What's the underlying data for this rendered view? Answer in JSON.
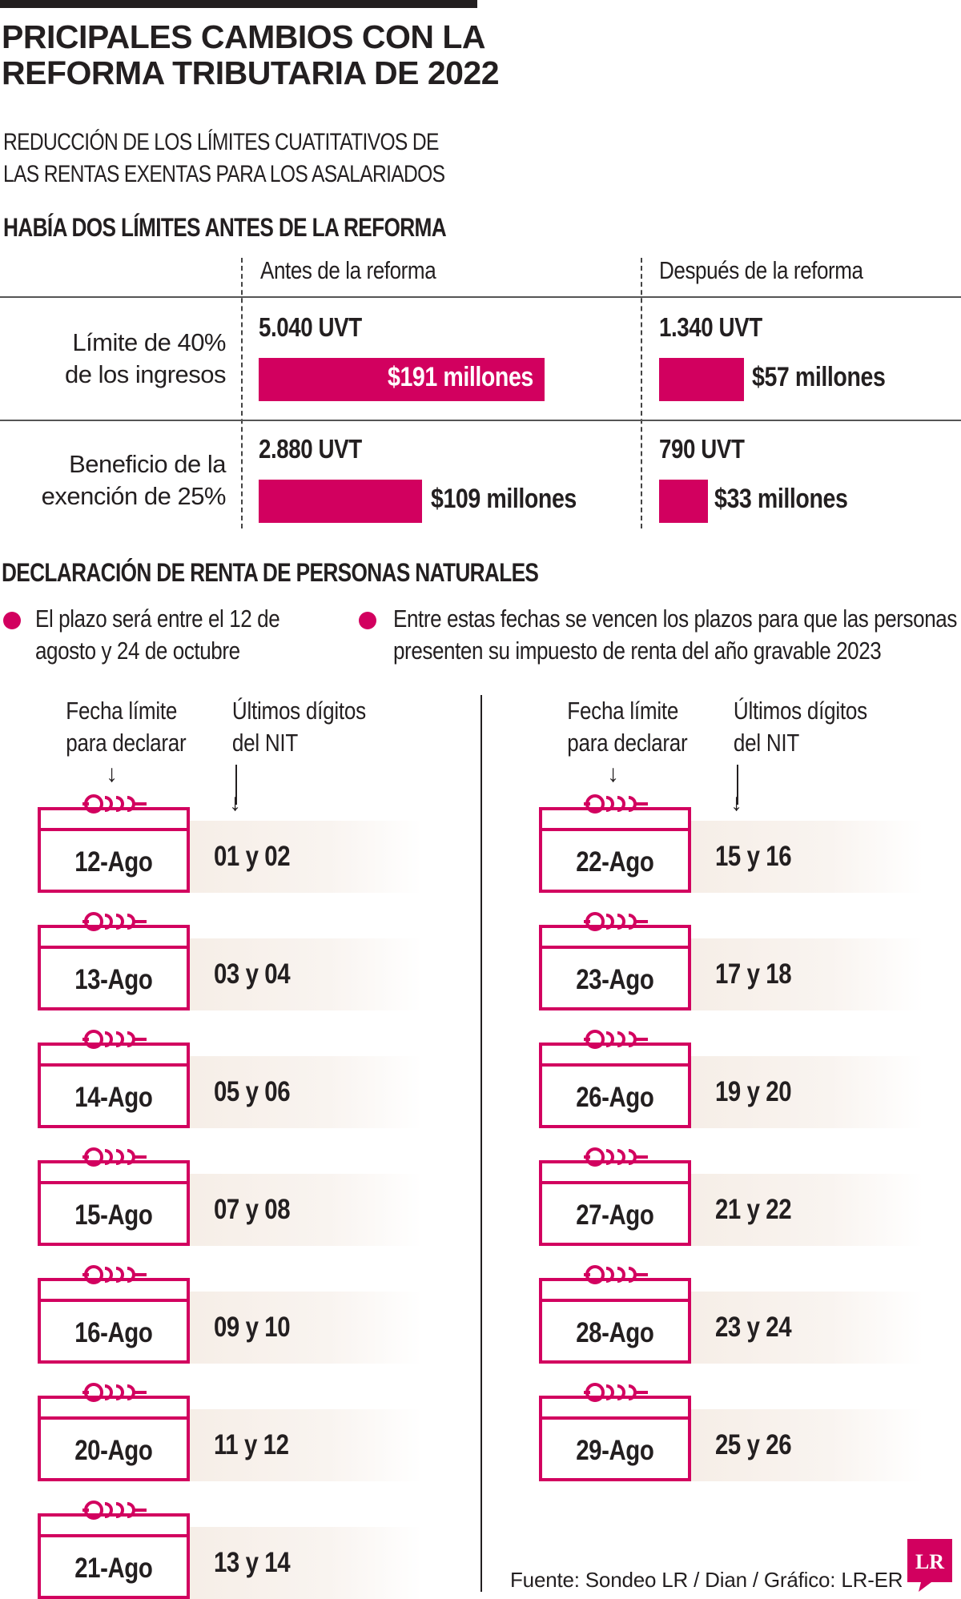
{
  "title": [
    "PRICIPALES CAMBIOS CON LA",
    "REFORMA TRIBUTARIA DE 2022"
  ],
  "subtitle": [
    "REDUCCIÓN DE LOS LÍMITES CUATITATIVOS DE",
    "LAS RENTAS EXENTAS PARA LOS ASALARIADOS"
  ],
  "section1": {
    "heading": "HABÍA DOS LÍMITES ANTES DE LA REFORMA",
    "col_before": "Antes de la reforma",
    "col_after": "Después de la reforma",
    "rows": [
      {
        "label": [
          "Límite de 40%",
          "de los ingresos"
        ],
        "before_uvt": "5.040 UVT",
        "before_money": "$191 millones",
        "before_value": 191,
        "after_uvt": "1.340 UVT",
        "after_money": "$57 millones",
        "after_value": 57
      },
      {
        "label": [
          "Beneficio de la",
          "exención de 25%"
        ],
        "before_uvt": "2.880 UVT",
        "before_money": "$109 millones",
        "before_value": 109,
        "after_uvt": "790 UVT",
        "after_money": "$33 millones",
        "after_value": 33
      }
    ]
  },
  "section2": {
    "heading": "DECLARACIÓN DE RENTA DE PERSONAS NATURALES",
    "bullet1": [
      "El plazo será entre el 12 de",
      "agosto y 24 de octubre"
    ],
    "bullet2": [
      "Entre estas fechas se vencen los plazos para que las personas",
      "presenten su impuesto de renta del año gravable 2023"
    ],
    "head_date": [
      "Fecha límite",
      "para declarar"
    ],
    "head_nit": [
      "Últimos dígitos",
      "del NIT"
    ],
    "left": [
      {
        "date": "12-Ago",
        "nit": "01 y 02"
      },
      {
        "date": "13-Ago",
        "nit": "03 y 04"
      },
      {
        "date": "14-Ago",
        "nit": "05 y 06"
      },
      {
        "date": "15-Ago",
        "nit": "07 y 08"
      },
      {
        "date": "16-Ago",
        "nit": "09 y 10"
      },
      {
        "date": "20-Ago",
        "nit": "11 y 12"
      },
      {
        "date": "21-Ago",
        "nit": "13 y 14"
      }
    ],
    "right": [
      {
        "date": "22-Ago",
        "nit": "15 y 16"
      },
      {
        "date": "23-Ago",
        "nit": "17 y 18"
      },
      {
        "date": "26-Ago",
        "nit": "19 y 20"
      },
      {
        "date": "27-Ago",
        "nit": "21 y 22"
      },
      {
        "date": "28-Ago",
        "nit": "23 y 24"
      },
      {
        "date": "29-Ago",
        "nit": "25 y 26"
      }
    ]
  },
  "source": "Fuente: Sondeo LR / Dian / Gráfico: LR-ER",
  "logo_text": "LR",
  "colors": {
    "accent": "#d2005f",
    "text": "#231f20",
    "cell_bg": "#f6eee7"
  }
}
